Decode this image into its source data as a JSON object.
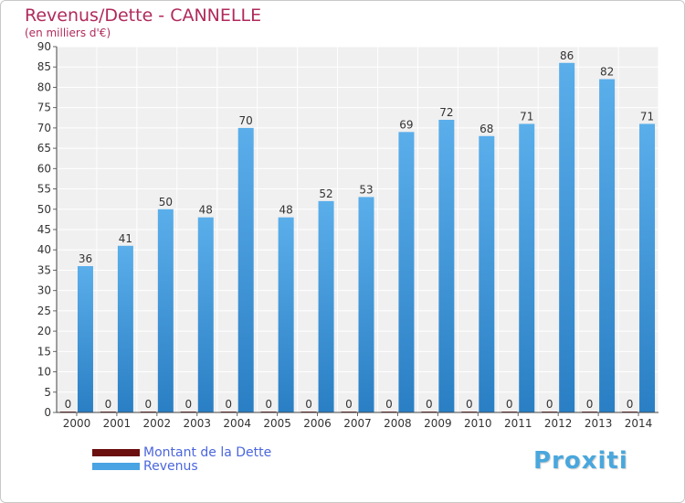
{
  "title": "Revenus/Dette - CANNELLE",
  "subtitle": "(en milliers d'€)",
  "logo_text": "Proxiti",
  "legend": [
    {
      "label": "Montant de la Dette",
      "color": "#6b0f0f"
    },
    {
      "label": "Revenus",
      "color": "#4aa3e2"
    }
  ],
  "chart_data": {
    "type": "bar",
    "title": "Revenus/Dette - CANNELLE",
    "subtitle": "(en milliers d'€)",
    "categories": [
      "2000",
      "2001",
      "2002",
      "2003",
      "2004",
      "2005",
      "2006",
      "2007",
      "2008",
      "2009",
      "2010",
      "2011",
      "2012",
      "2013",
      "2014"
    ],
    "series": [
      {
        "name": "Montant de la Dette",
        "color": "#6b0f0f",
        "values": [
          0,
          0,
          0,
          0,
          0,
          0,
          0,
          0,
          0,
          0,
          0,
          0,
          0,
          0,
          0
        ]
      },
      {
        "name": "Revenus",
        "color": "#4aa3e2",
        "values": [
          36,
          41,
          50,
          48,
          70,
          48,
          52,
          53,
          69,
          72,
          68,
          71,
          86,
          82,
          71
        ]
      }
    ],
    "ylim": [
      0,
      90
    ],
    "yticks": [
      0,
      5,
      10,
      15,
      20,
      25,
      30,
      35,
      40,
      45,
      50,
      55,
      60,
      65,
      70,
      75,
      80,
      85,
      90
    ],
    "grid": true,
    "legend_position": "bottom-left"
  }
}
